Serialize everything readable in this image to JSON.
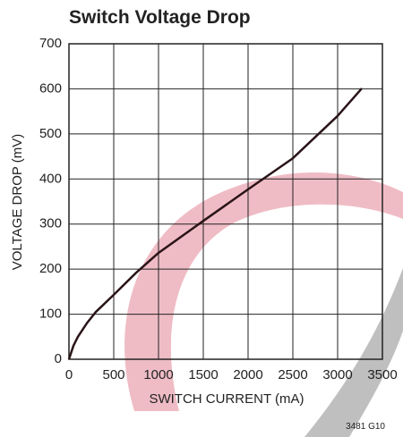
{
  "chart_data": {
    "type": "line",
    "title": "Switch Voltage Drop",
    "x_label": "SWITCH CURRENT (mA)",
    "y_label": "VOLTAGE DROP (mV)",
    "note": "3481 G10",
    "x": [
      0,
      50,
      100,
      200,
      300,
      500,
      750,
      1000,
      1500,
      2000,
      2500,
      3000,
      3270
    ],
    "series": [
      {
        "color": "#2a1418",
        "values": [
          0,
          30,
          50,
          80,
          105,
          143,
          192,
          236,
          307,
          377,
          446,
          540,
          601
        ]
      }
    ],
    "xlim": [
      0,
      3500
    ],
    "xticks": [
      0,
      500,
      1000,
      1500,
      2000,
      2500,
      3000,
      3500
    ],
    "ylim": [
      0,
      700
    ],
    "yticks": [
      0,
      100,
      200,
      300,
      400,
      500,
      600,
      700
    ],
    "grid": true
  }
}
